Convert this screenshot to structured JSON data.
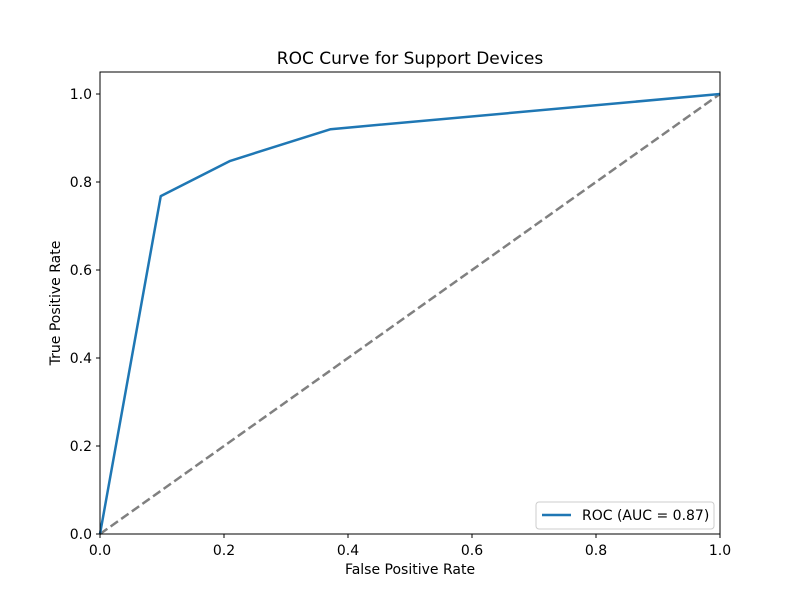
{
  "chart_data": {
    "type": "line",
    "title": "ROC Curve for Support Devices",
    "xlabel": "False Positive Rate",
    "ylabel": "True Positive Rate",
    "xlim": [
      0,
      1
    ],
    "ylim": [
      0,
      1.05
    ],
    "xticks": [
      0.0,
      0.2,
      0.4,
      0.6,
      0.8,
      1.0
    ],
    "yticks": [
      0.0,
      0.2,
      0.4,
      0.6,
      0.8,
      1.0
    ],
    "xtick_labels": [
      "0.0",
      "0.2",
      "0.4",
      "0.6",
      "0.8",
      "1.0"
    ],
    "ytick_labels": [
      "0.0",
      "0.2",
      "0.4",
      "0.6",
      "0.8",
      "1.0"
    ],
    "grid": false,
    "legend_position": "lower-right",
    "series": [
      {
        "name": "ROC (AUC = 0.87)",
        "color": "#1f77b4",
        "style": "solid",
        "x": [
          0.0,
          0.098,
          0.21,
          0.372,
          1.0
        ],
        "y": [
          0.0,
          0.768,
          0.848,
          0.92,
          1.0
        ]
      },
      {
        "color": "#808080",
        "style": "dashed",
        "x": [
          0.0,
          1.0
        ],
        "y": [
          0.0,
          1.0
        ]
      }
    ]
  }
}
